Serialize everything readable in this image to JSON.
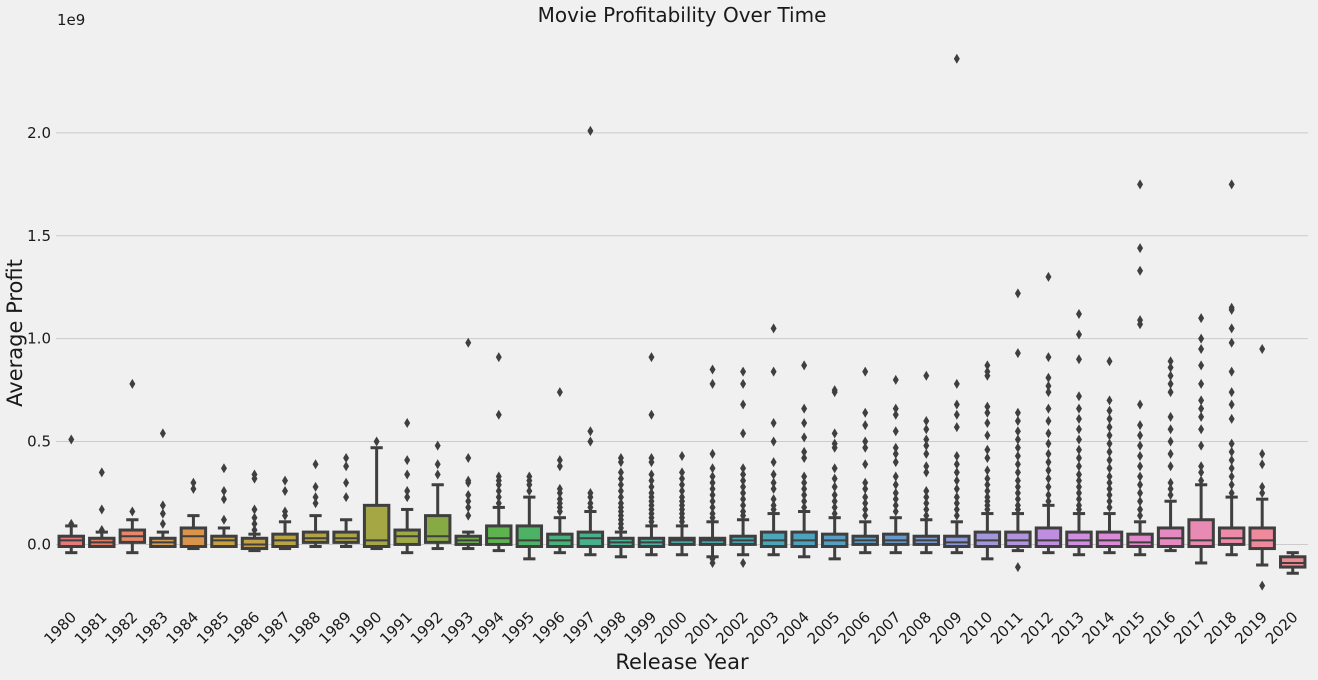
{
  "chart_data": {
    "type": "box",
    "title": "Movie Profitability Over Time",
    "xlabel": "Release Year",
    "ylabel": "Average Profit",
    "offset_text": "1e9",
    "y_scale_factor": 1000000000,
    "ylim": [
      -0.27,
      2.5
    ],
    "yticks": [
      0.0,
      0.5,
      1.0,
      1.5,
      2.0
    ],
    "ytick_labels": [
      "0.0",
      "0.5",
      "1.0",
      "1.5",
      "2.0"
    ],
    "grid": "y-only",
    "categories": [
      "1980",
      "1981",
      "1982",
      "1983",
      "1984",
      "1985",
      "1986",
      "1987",
      "1988",
      "1989",
      "1990",
      "1991",
      "1992",
      "1993",
      "1994",
      "1995",
      "1996",
      "1997",
      "1998",
      "1999",
      "2000",
      "2001",
      "2002",
      "2003",
      "2004",
      "2005",
      "2006",
      "2007",
      "2008",
      "2009",
      "2010",
      "2011",
      "2012",
      "2013",
      "2014",
      "2015",
      "2016",
      "2017",
      "2018",
      "2019",
      "2020"
    ],
    "boxes": [
      {
        "color": "#e8787a",
        "wlo": -0.04,
        "q1": -0.01,
        "med": 0.02,
        "q3": 0.04,
        "whi": 0.09,
        "outliers": [
          0.1,
          0.51
        ]
      },
      {
        "color": "#e47a60",
        "wlo": -0.01,
        "q1": -0.01,
        "med": 0.01,
        "q3": 0.03,
        "whi": 0.06,
        "outliers": [
          0.07,
          0.17,
          0.35
        ]
      },
      {
        "color": "#e8866c",
        "wlo": -0.04,
        "q1": 0.01,
        "med": 0.04,
        "q3": 0.07,
        "whi": 0.12,
        "outliers": [
          0.16,
          0.78
        ]
      },
      {
        "color": "#d99a55",
        "wlo": -0.01,
        "q1": -0.01,
        "med": 0.01,
        "q3": 0.03,
        "whi": 0.06,
        "outliers": [
          0.1,
          0.15,
          0.19,
          0.54
        ]
      },
      {
        "color": "#d8944a",
        "wlo": -0.02,
        "q1": -0.01,
        "med": 0.04,
        "q3": 0.08,
        "whi": 0.14,
        "outliers": [
          0.27,
          0.3
        ]
      },
      {
        "color": "#c99f44",
        "wlo": -0.01,
        "q1": -0.01,
        "med": 0.02,
        "q3": 0.04,
        "whi": 0.08,
        "outliers": [
          0.12,
          0.22,
          0.26,
          0.37
        ]
      },
      {
        "color": "#c3a148",
        "wlo": -0.03,
        "q1": -0.02,
        "med": 0.0,
        "q3": 0.03,
        "whi": 0.05,
        "outliers": [
          0.07,
          0.1,
          0.13,
          0.17,
          0.32,
          0.34
        ]
      },
      {
        "color": "#b9a445",
        "wlo": -0.02,
        "q1": -0.01,
        "med": 0.02,
        "q3": 0.05,
        "whi": 0.11,
        "outliers": [
          0.14,
          0.16,
          0.26,
          0.31
        ]
      },
      {
        "color": "#b3a443",
        "wlo": -0.01,
        "q1": 0.01,
        "med": 0.03,
        "q3": 0.06,
        "whi": 0.14,
        "outliers": [
          0.2,
          0.23,
          0.28,
          0.39
        ]
      },
      {
        "color": "#aba546",
        "wlo": -0.01,
        "q1": 0.01,
        "med": 0.03,
        "q3": 0.06,
        "whi": 0.12,
        "outliers": [
          0.23,
          0.3,
          0.38,
          0.42
        ]
      },
      {
        "color": "#a5a745",
        "wlo": -0.02,
        "q1": -0.01,
        "med": 0.02,
        "q3": 0.19,
        "whi": 0.47,
        "outliers": [
          0.5
        ]
      },
      {
        "color": "#9eaa45",
        "wlo": -0.04,
        "q1": 0.0,
        "med": 0.04,
        "q3": 0.07,
        "whi": 0.17,
        "outliers": [
          0.23,
          0.26,
          0.34,
          0.41,
          0.59
        ]
      },
      {
        "color": "#88aa45",
        "wlo": -0.02,
        "q1": 0.01,
        "med": 0.04,
        "q3": 0.14,
        "whi": 0.29,
        "outliers": [
          0.34,
          0.39,
          0.48
        ]
      },
      {
        "color": "#6fae50",
        "wlo": -0.02,
        "q1": 0.0,
        "med": 0.02,
        "q3": 0.04,
        "whi": 0.06,
        "outliers": [
          0.14,
          0.18,
          0.21,
          0.24,
          0.3,
          0.31,
          0.42,
          0.98
        ]
      },
      {
        "color": "#5db44e",
        "wlo": -0.03,
        "q1": 0.0,
        "med": 0.03,
        "q3": 0.09,
        "whi": 0.18,
        "outliers": [
          0.2,
          0.23,
          0.26,
          0.29,
          0.31,
          0.33,
          0.63,
          0.91
        ]
      },
      {
        "color": "#4db264",
        "wlo": -0.07,
        "q1": -0.01,
        "med": 0.02,
        "q3": 0.09,
        "whi": 0.23,
        "outliers": [
          0.26,
          0.29,
          0.31,
          0.33
        ]
      },
      {
        "color": "#48b27a",
        "wlo": -0.04,
        "q1": -0.01,
        "med": 0.02,
        "q3": 0.05,
        "whi": 0.13,
        "outliers": [
          0.16,
          0.18,
          0.2,
          0.22,
          0.25,
          0.27,
          0.38,
          0.41,
          0.74
        ]
      },
      {
        "color": "#48b08a",
        "wlo": -0.05,
        "q1": -0.01,
        "med": 0.03,
        "q3": 0.06,
        "whi": 0.16,
        "outliers": [
          0.18,
          0.2,
          0.23,
          0.25,
          0.5,
          0.55,
          2.01
        ]
      },
      {
        "color": "#4aaf95",
        "wlo": -0.06,
        "q1": -0.01,
        "med": 0.01,
        "q3": 0.03,
        "whi": 0.06,
        "outliers": [
          0.08,
          0.1,
          0.12,
          0.14,
          0.16,
          0.18,
          0.2,
          0.23,
          0.26,
          0.29,
          0.32,
          0.35,
          0.4,
          0.42
        ]
      },
      {
        "color": "#4aaf9c",
        "wlo": -0.05,
        "q1": -0.01,
        "med": 0.01,
        "q3": 0.03,
        "whi": 0.09,
        "outliers": [
          0.11,
          0.13,
          0.15,
          0.17,
          0.19,
          0.21,
          0.23,
          0.25,
          0.28,
          0.31,
          0.34,
          0.4,
          0.42,
          0.63,
          0.91
        ]
      },
      {
        "color": "#4aada6",
        "wlo": -0.05,
        "q1": 0.0,
        "med": 0.02,
        "q3": 0.03,
        "whi": 0.09,
        "outliers": [
          0.11,
          0.13,
          0.15,
          0.17,
          0.19,
          0.21,
          0.23,
          0.26,
          0.29,
          0.32,
          0.35,
          0.43
        ]
      },
      {
        "color": "#4aabad",
        "wlo": -0.06,
        "q1": 0.0,
        "med": 0.02,
        "q3": 0.03,
        "whi": 0.11,
        "outliers": [
          -0.09,
          -0.07,
          0.13,
          0.15,
          0.18,
          0.21,
          0.24,
          0.27,
          0.3,
          0.33,
          0.37,
          0.44,
          0.78,
          0.85
        ]
      },
      {
        "color": "#4aa8b2",
        "wlo": -0.05,
        "q1": 0.0,
        "med": 0.02,
        "q3": 0.04,
        "whi": 0.12,
        "outliers": [
          -0.09,
          0.14,
          0.16,
          0.19,
          0.22,
          0.25,
          0.28,
          0.31,
          0.34,
          0.37,
          0.54,
          0.68,
          0.78,
          0.84
        ]
      },
      {
        "color": "#4aa6b8",
        "wlo": -0.05,
        "q1": -0.01,
        "med": 0.02,
        "q3": 0.06,
        "whi": 0.15,
        "outliers": [
          0.17,
          0.19,
          0.22,
          0.27,
          0.3,
          0.34,
          0.4,
          0.5,
          0.59,
          0.84,
          1.05
        ]
      },
      {
        "color": "#4da3bd",
        "wlo": -0.06,
        "q1": -0.01,
        "med": 0.02,
        "q3": 0.06,
        "whi": 0.16,
        "outliers": [
          0.18,
          0.21,
          0.24,
          0.27,
          0.3,
          0.33,
          0.42,
          0.45,
          0.52,
          0.59,
          0.66,
          0.87
        ]
      },
      {
        "color": "#55a0c2",
        "wlo": -0.07,
        "q1": -0.01,
        "med": 0.02,
        "q3": 0.05,
        "whi": 0.13,
        "outliers": [
          0.15,
          0.18,
          0.21,
          0.24,
          0.28,
          0.32,
          0.37,
          0.47,
          0.49,
          0.54,
          0.74,
          0.75
        ]
      },
      {
        "color": "#5d9dc6",
        "wlo": -0.04,
        "q1": 0.0,
        "med": 0.02,
        "q3": 0.04,
        "whi": 0.11,
        "outliers": [
          0.14,
          0.17,
          0.2,
          0.23,
          0.27,
          0.3,
          0.39,
          0.47,
          0.5,
          0.58,
          0.64,
          0.84
        ]
      },
      {
        "color": "#6699cc",
        "wlo": -0.04,
        "q1": 0.0,
        "med": 0.02,
        "q3": 0.05,
        "whi": 0.13,
        "outliers": [
          0.16,
          0.19,
          0.22,
          0.25,
          0.29,
          0.33,
          0.4,
          0.44,
          0.47,
          0.55,
          0.63,
          0.66,
          0.8
        ]
      },
      {
        "color": "#7a9ad0",
        "wlo": -0.04,
        "q1": 0.0,
        "med": 0.02,
        "q3": 0.04,
        "whi": 0.12,
        "outliers": [
          0.14,
          0.17,
          0.2,
          0.23,
          0.26,
          0.35,
          0.38,
          0.44,
          0.48,
          0.51,
          0.56,
          0.6,
          0.82
        ]
      },
      {
        "color": "#8c97d6",
        "wlo": -0.04,
        "q1": -0.01,
        "med": 0.01,
        "q3": 0.04,
        "whi": 0.11,
        "outliers": [
          0.14,
          0.17,
          0.2,
          0.23,
          0.27,
          0.31,
          0.35,
          0.39,
          0.43,
          0.57,
          0.63,
          0.68,
          0.78,
          2.36
        ]
      },
      {
        "color": "#a397dc",
        "wlo": -0.07,
        "q1": -0.01,
        "med": 0.02,
        "q3": 0.06,
        "whi": 0.15,
        "outliers": [
          0.17,
          0.19,
          0.21,
          0.23,
          0.26,
          0.29,
          0.32,
          0.36,
          0.42,
          0.46,
          0.53,
          0.59,
          0.64,
          0.67,
          0.82,
          0.84,
          0.87
        ]
      },
      {
        "color": "#b193de",
        "wlo": -0.03,
        "q1": -0.01,
        "med": 0.02,
        "q3": 0.06,
        "whi": 0.15,
        "outliers": [
          -0.11,
          0.17,
          0.19,
          0.22,
          0.25,
          0.28,
          0.31,
          0.35,
          0.39,
          0.43,
          0.47,
          0.51,
          0.55,
          0.6,
          0.64,
          0.93,
          1.22
        ]
      },
      {
        "color": "#c08ee0",
        "wlo": -0.04,
        "q1": -0.01,
        "med": 0.02,
        "q3": 0.08,
        "whi": 0.19,
        "outliers": [
          0.21,
          0.24,
          0.28,
          0.32,
          0.36,
          0.4,
          0.44,
          0.49,
          0.54,
          0.6,
          0.66,
          0.74,
          0.77,
          0.81,
          0.91,
          1.3
        ]
      },
      {
        "color": "#d08ee0",
        "wlo": -0.05,
        "q1": -0.01,
        "med": 0.02,
        "q3": 0.06,
        "whi": 0.15,
        "outliers": [
          0.17,
          0.19,
          0.22,
          0.25,
          0.28,
          0.31,
          0.34,
          0.38,
          0.42,
          0.46,
          0.51,
          0.56,
          0.61,
          0.66,
          0.72,
          0.9,
          1.02,
          1.12
        ]
      },
      {
        "color": "#dc8ad8",
        "wlo": -0.04,
        "q1": -0.01,
        "med": 0.02,
        "q3": 0.06,
        "whi": 0.15,
        "outliers": [
          0.18,
          0.21,
          0.24,
          0.27,
          0.3,
          0.33,
          0.37,
          0.41,
          0.45,
          0.49,
          0.53,
          0.57,
          0.61,
          0.65,
          0.7,
          0.89
        ]
      },
      {
        "color": "#e188cc",
        "wlo": -0.05,
        "q1": -0.01,
        "med": 0.01,
        "q3": 0.05,
        "whi": 0.11,
        "outliers": [
          0.14,
          0.17,
          0.21,
          0.25,
          0.29,
          0.33,
          0.38,
          0.43,
          0.48,
          0.53,
          0.58,
          0.68,
          1.07,
          1.09,
          1.33,
          1.44,
          1.75
        ]
      },
      {
        "color": "#e58ac0",
        "wlo": -0.03,
        "q1": -0.01,
        "med": 0.03,
        "q3": 0.08,
        "whi": 0.21,
        "outliers": [
          0.24,
          0.27,
          0.3,
          0.38,
          0.44,
          0.5,
          0.56,
          0.62,
          0.74,
          0.78,
          0.82,
          0.86,
          0.89
        ]
      },
      {
        "color": "#e98ab4",
        "wlo": -0.09,
        "q1": -0.01,
        "med": 0.02,
        "q3": 0.12,
        "whi": 0.29,
        "outliers": [
          0.31,
          0.35,
          0.38,
          0.48,
          0.56,
          0.62,
          0.66,
          0.7,
          0.78,
          0.87,
          0.95,
          1.0,
          1.1
        ]
      },
      {
        "color": "#ec8aa8",
        "wlo": -0.05,
        "q1": 0.0,
        "med": 0.03,
        "q3": 0.08,
        "whi": 0.23,
        "outliers": [
          0.25,
          0.29,
          0.33,
          0.37,
          0.41,
          0.45,
          0.49,
          0.61,
          0.68,
          0.74,
          0.84,
          0.98,
          1.05,
          1.14,
          1.15,
          1.75
        ]
      },
      {
        "color": "#ee8a9c",
        "wlo": -0.1,
        "q1": -0.02,
        "med": 0.02,
        "q3": 0.08,
        "whi": 0.22,
        "outliers": [
          -0.2,
          0.25,
          0.28,
          0.39,
          0.44,
          0.95
        ]
      },
      {
        "color": "#f08a92",
        "wlo": -0.14,
        "q1": -0.11,
        "med": -0.09,
        "q3": -0.06,
        "whi": -0.04,
        "outliers": []
      }
    ]
  }
}
